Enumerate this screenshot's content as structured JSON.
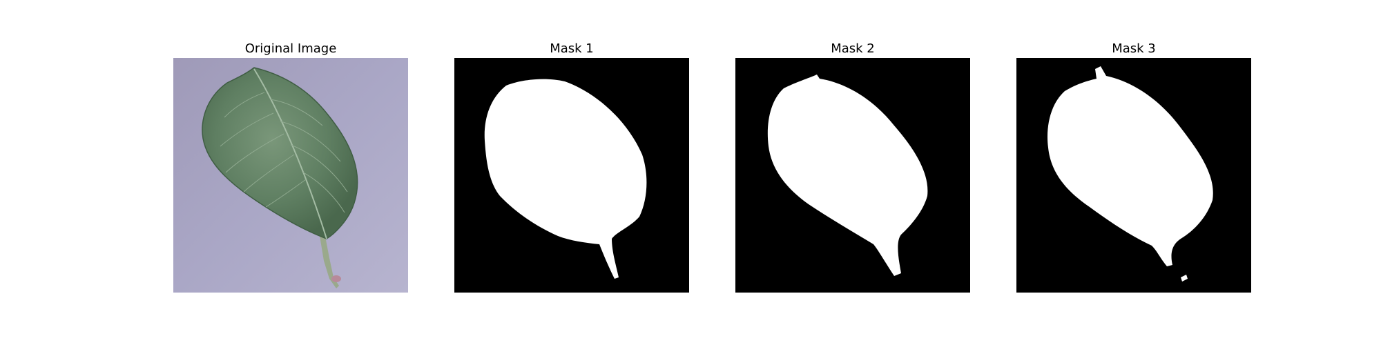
{
  "panels": [
    {
      "title": "Original Image",
      "kind": "photo",
      "subject": "leaf-photo"
    },
    {
      "title": "Mask 1",
      "kind": "mask",
      "subject": "leaf-mask"
    },
    {
      "title": "Mask 2",
      "kind": "mask",
      "subject": "leaf-mask"
    },
    {
      "title": "Mask 3",
      "kind": "mask",
      "subject": "leaf-mask"
    }
  ],
  "colors": {
    "background": "#ffffff",
    "mask_background": "#000000",
    "mask_foreground": "#ffffff",
    "photo_background": "#a7a4c2",
    "leaf_dark": "#4f6e52",
    "leaf_mid": "#6b8a6c",
    "leaf_vein": "#9db59e"
  }
}
